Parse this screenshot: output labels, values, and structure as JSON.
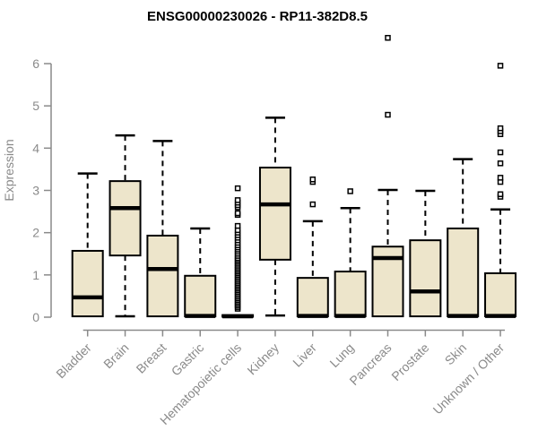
{
  "title": "ENSG00000230026 - RP11-382D8.5",
  "colors": {
    "box_fill": "#EDE5CB",
    "box_stroke": "#000000",
    "median": "#000000",
    "axis": "#8A8A8A",
    "tick_text": "#8A8A8A",
    "title_text": "#000000",
    "background": "#FFFFFF"
  },
  "chart_data": {
    "type": "boxplot",
    "title": "ENSG00000230026 - RP11-382D8.5",
    "xlabel": "",
    "ylabel": "Expression",
    "ylim": [
      0,
      6.8
    ],
    "yticks": [
      0,
      1,
      2,
      3,
      4,
      5,
      6
    ],
    "grid": false,
    "legend": "none",
    "categories": [
      "Bladder",
      "Brain",
      "Breast",
      "Gastric",
      "Hematopoietic cells",
      "Kidney",
      "Liver",
      "Lung",
      "Pancreas",
      "Prostate",
      "Skin",
      "Unknown / Other"
    ],
    "boxes": [
      {
        "category": "Bladder",
        "low": 0.02,
        "q1": 0.02,
        "median": 0.47,
        "q3": 1.57,
        "high": 3.4,
        "outliers": []
      },
      {
        "category": "Brain",
        "low": 0.02,
        "q1": 1.46,
        "median": 2.58,
        "q3": 3.22,
        "high": 4.3,
        "outliers": []
      },
      {
        "category": "Breast",
        "low": 0.02,
        "q1": 0.02,
        "median": 1.14,
        "q3": 1.93,
        "high": 4.17,
        "outliers": []
      },
      {
        "category": "Gastric",
        "low": 0.02,
        "q1": 0.02,
        "median": 0.03,
        "q3": 0.98,
        "high": 2.1,
        "outliers": []
      },
      {
        "category": "Hematopoietic cells",
        "low": 0.01,
        "q1": 0.01,
        "median": 0.02,
        "q3": 0.05,
        "high": 0.05,
        "outliers": [
          0.2,
          0.24,
          0.28,
          0.32,
          0.36,
          0.4,
          0.44,
          0.48,
          0.52,
          0.56,
          0.6,
          0.64,
          0.68,
          0.72,
          0.76,
          0.8,
          0.84,
          0.88,
          0.92,
          0.96,
          1.0,
          1.04,
          1.08,
          1.12,
          1.16,
          1.2,
          1.24,
          1.28,
          1.32,
          1.36,
          1.4,
          1.45,
          1.5,
          1.55,
          1.6,
          1.65,
          1.7,
          1.76,
          1.82,
          1.88,
          1.94,
          2.0,
          2.06,
          2.16,
          2.42,
          2.46,
          2.6,
          2.65,
          2.71,
          2.77,
          3.05
        ]
      },
      {
        "category": "Kidney",
        "low": 0.04,
        "q1": 1.36,
        "median": 2.67,
        "q3": 3.54,
        "high": 4.72,
        "outliers": []
      },
      {
        "category": "Liver",
        "low": 0.02,
        "q1": 0.02,
        "median": 0.03,
        "q3": 0.93,
        "high": 2.27,
        "outliers": [
          2.67,
          3.2,
          3.26
        ]
      },
      {
        "category": "Lung",
        "low": 0.02,
        "q1": 0.02,
        "median": 0.03,
        "q3": 1.08,
        "high": 2.58,
        "outliers": [
          2.98
        ]
      },
      {
        "category": "Pancreas",
        "low": 0.02,
        "q1": 0.02,
        "median": 1.4,
        "q3": 1.67,
        "high": 3.01,
        "outliers": [
          4.79,
          6.61
        ]
      },
      {
        "category": "Prostate",
        "low": 0.02,
        "q1": 0.02,
        "median": 0.61,
        "q3": 1.82,
        "high": 2.99,
        "outliers": []
      },
      {
        "category": "Skin",
        "low": 0.02,
        "q1": 0.02,
        "median": 0.03,
        "q3": 2.1,
        "high": 3.74,
        "outliers": []
      },
      {
        "category": "Unknown / Other",
        "low": 0.02,
        "q1": 0.02,
        "median": 0.03,
        "q3": 1.04,
        "high": 2.55,
        "outliers": [
          2.85,
          2.91,
          3.2,
          3.3,
          3.64,
          3.9,
          4.33,
          4.4,
          4.47,
          5.95
        ]
      }
    ]
  }
}
